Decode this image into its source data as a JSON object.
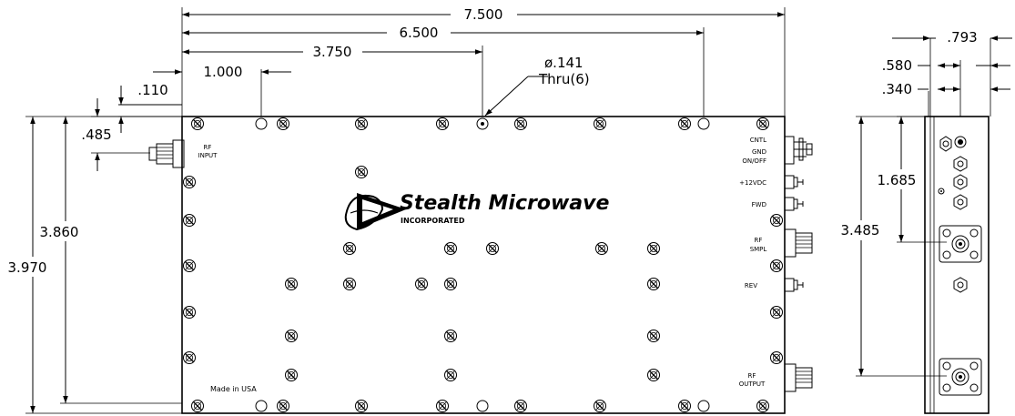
{
  "dimensions": {
    "overall_width": "7.500",
    "hole_span": "6.500",
    "center_hole": "3.750",
    "first_hole": "1.000",
    "top_offset": ".110",
    "rf_input_offset": ".485",
    "hole_spec_diameter": "ø.141",
    "hole_spec_thru": "Thru(6)",
    "inner_height": "3.860",
    "overall_height": "3.970",
    "side_depth": ".793",
    "side_580": ".580",
    "side_340": ".340",
    "side_1685": "1.685",
    "side_3485": "3.485"
  },
  "labels": {
    "rf_input_line1": "RF",
    "rf_input_line2": "INPUT",
    "cntl": "CNTL",
    "gnd": "GND",
    "on_off": "ON/OFF",
    "plus12vdc": "+12VDC",
    "fwd": "FWD",
    "rf_smpl_line1": "RF",
    "rf_smpl_line2": "SMPL",
    "rev": "REV",
    "rf_output_line1": "RF",
    "rf_output_line2": "OUTPUT",
    "made_in": "Made in USA"
  },
  "brand": {
    "name": "Stealth Microwave",
    "sub": "INCORPORATED"
  },
  "icons": [
    "screw-icon",
    "mounting-hole-icon",
    "sma-connector-icon",
    "n-connector-icon",
    "arrowhead-icon",
    "logo-icon"
  ]
}
